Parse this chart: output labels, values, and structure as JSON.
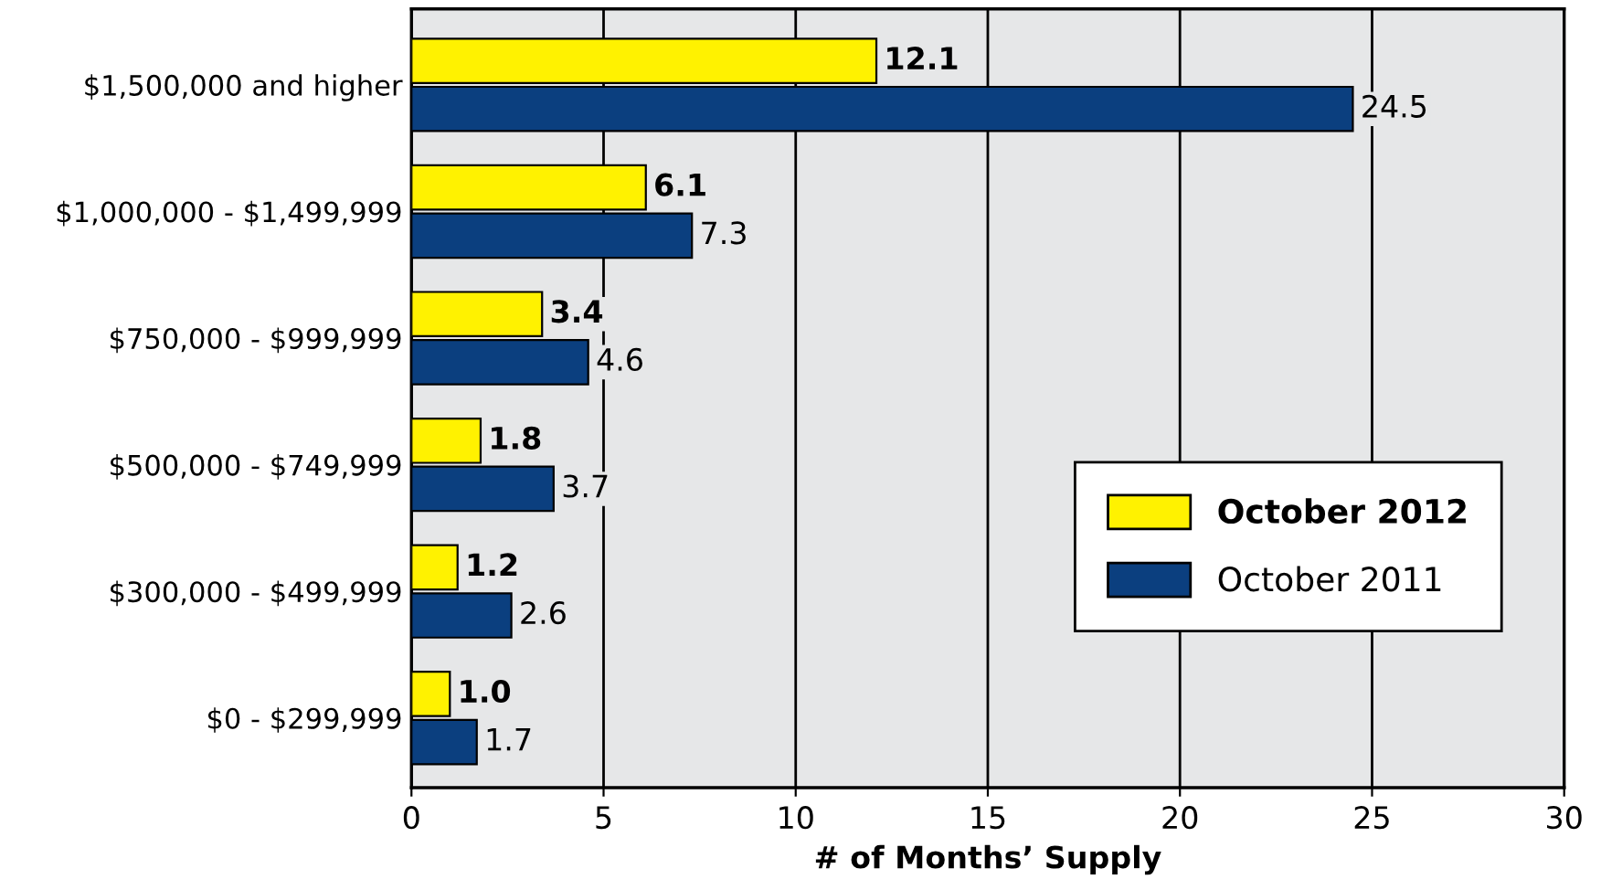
{
  "chart_data": {
    "type": "bar",
    "orientation": "horizontal",
    "xlabel": "# of Months’ Supply",
    "categories": [
      "$1,500,000 and higher",
      "$1,000,000 - $1,499,999",
      "$750,000 - $999,999",
      "$500,000 - $749,999",
      "$300,000 - $499,999",
      "$0 - $299,999"
    ],
    "series": [
      {
        "name": "October 2012",
        "color": "#fff200",
        "values": [
          12.1,
          6.1,
          3.4,
          1.8,
          1.2,
          1.0
        ],
        "value_labels": [
          "12.1",
          "6.1",
          "3.4",
          "1.8",
          "1.2",
          "1.0"
        ]
      },
      {
        "name": "October 2011",
        "color": "#0b3f7f",
        "values": [
          24.5,
          7.3,
          4.6,
          3.7,
          2.6,
          1.7
        ],
        "value_labels": [
          "24.5",
          "7.3",
          "4.6",
          "3.7",
          "2.6",
          "1.7"
        ]
      }
    ],
    "xlim": [
      0,
      30
    ],
    "xticks": [
      0,
      5,
      10,
      15,
      20,
      25,
      30
    ],
    "grid": "x",
    "legend": "bottom right"
  }
}
